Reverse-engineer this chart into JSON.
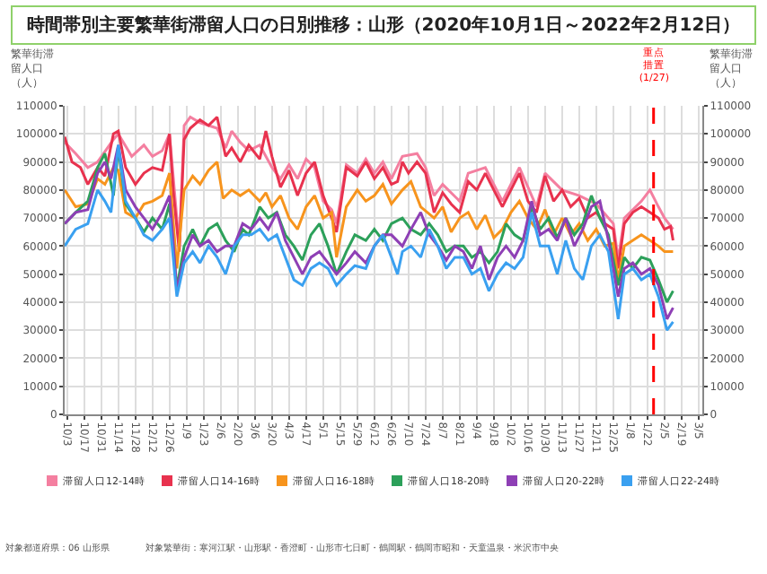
{
  "chart_data": {
    "type": "line",
    "title": "時間帯別主要繁華街滞留人口の日別推移：山形（2020年10月1日～2022年2月12日）",
    "ylabel": "繁華街滞留人口（人）",
    "y2label": "繁華街滞留人口（人）",
    "annotations": [
      "対象都道府県：06 山形県",
      "対象繁華街：寒河江駅・山形駅・香澄町・山形市七日町・鶴岡駅・鶴岡市昭和・天童温泉・米沢市中央"
    ],
    "xlim": [
      "2020-10-01",
      "2022-03-08"
    ],
    "xticks": [
      {
        "value": "2020-10-03",
        "label": "10/3"
      },
      {
        "value": "2020-10-17",
        "label": "10/17"
      },
      {
        "value": "2020-10-31",
        "label": "10/31"
      },
      {
        "value": "2020-11-14",
        "label": "11/14"
      },
      {
        "value": "2020-11-28",
        "label": "11/28"
      },
      {
        "value": "2020-12-12",
        "label": "12/12"
      },
      {
        "value": "2020-12-26",
        "label": "12/26"
      },
      {
        "value": "2021-01-09",
        "label": "1/9"
      },
      {
        "value": "2021-01-23",
        "label": "1/23"
      },
      {
        "value": "2021-02-06",
        "label": "2/6"
      },
      {
        "value": "2021-02-20",
        "label": "2/20"
      },
      {
        "value": "2021-03-06",
        "label": "3/6"
      },
      {
        "value": "2021-03-20",
        "label": "3/20"
      },
      {
        "value": "2021-04-03",
        "label": "4/3"
      },
      {
        "value": "2021-04-17",
        "label": "4/17"
      },
      {
        "value": "2021-05-01",
        "label": "5/1"
      },
      {
        "value": "2021-05-15",
        "label": "5/15"
      },
      {
        "value": "2021-05-29",
        "label": "5/29"
      },
      {
        "value": "2021-06-12",
        "label": "6/12"
      },
      {
        "value": "2021-06-26",
        "label": "6/26"
      },
      {
        "value": "2021-07-10",
        "label": "7/10"
      },
      {
        "value": "2021-07-24",
        "label": "7/24"
      },
      {
        "value": "2021-08-07",
        "label": "8/7"
      },
      {
        "value": "2021-08-21",
        "label": "8/21"
      },
      {
        "value": "2021-09-04",
        "label": "9/4"
      },
      {
        "value": "2021-09-18",
        "label": "9/18"
      },
      {
        "value": "2021-10-02",
        "label": "10/2"
      },
      {
        "value": "2021-10-16",
        "label": "10/16"
      },
      {
        "value": "2021-10-30",
        "label": "10/30"
      },
      {
        "value": "2021-11-13",
        "label": "11/13"
      },
      {
        "value": "2021-11-27",
        "label": "11/27"
      },
      {
        "value": "2021-12-11",
        "label": "12/11"
      },
      {
        "value": "2021-12-25",
        "label": "12/25"
      },
      {
        "value": "2022-01-08",
        "label": "1/8"
      },
      {
        "value": "2022-01-22",
        "label": "1/22"
      },
      {
        "value": "2022-02-05",
        "label": "2/5"
      },
      {
        "value": "2022-02-19",
        "label": "2/19"
      },
      {
        "value": "2022-03-05",
        "label": "3/5"
      }
    ],
    "ylim": [
      0,
      110000
    ],
    "yticks": [
      0,
      10000,
      20000,
      30000,
      40000,
      50000,
      60000,
      70000,
      80000,
      90000,
      100000,
      110000
    ],
    "y2lim": [
      0,
      110000
    ],
    "y2ticks": [
      0,
      10000,
      20000,
      30000,
      40000,
      50000,
      60000,
      70000,
      80000,
      90000,
      100000,
      110000
    ],
    "grid": true,
    "legend": "bottom",
    "marker": "none",
    "line_style": "solid",
    "ref_lines": [
      {
        "axis": "x",
        "value": "2022-01-27",
        "label": "重点措置(1/27)",
        "color": "#ff0000",
        "line_style": "dashed"
      }
    ],
    "series": [
      {
        "name": "滞留人口12-14時",
        "color": "#f47fa0",
        "x": [
          "2020-10-01",
          "2020-10-10",
          "2020-10-20",
          "2020-10-28",
          "2020-11-10",
          "2020-11-14",
          "2020-11-25",
          "2020-12-05",
          "2020-12-12",
          "2020-12-20",
          "2020-12-26",
          "2021-01-03",
          "2021-01-07",
          "2021-01-12",
          "2021-01-20",
          "2021-02-03",
          "2021-02-10",
          "2021-02-15",
          "2021-02-22",
          "2021-03-01",
          "2021-03-10",
          "2021-03-20",
          "2021-03-27",
          "2021-04-03",
          "2021-04-10",
          "2021-04-17",
          "2021-04-24",
          "2021-05-01",
          "2021-05-08",
          "2021-05-12",
          "2021-05-20",
          "2021-05-29",
          "2021-06-05",
          "2021-06-12",
          "2021-06-19",
          "2021-06-26",
          "2021-07-05",
          "2021-07-17",
          "2021-07-24",
          "2021-07-31",
          "2021-08-07",
          "2021-08-21",
          "2021-08-28",
          "2021-09-11",
          "2021-09-18",
          "2021-09-25",
          "2021-10-09",
          "2021-10-23",
          "2021-10-30",
          "2021-11-13",
          "2021-11-27",
          "2021-12-11",
          "2021-12-25",
          "2021-12-29",
          "2022-01-03",
          "2022-01-17",
          "2022-01-24",
          "2022-01-31",
          "2022-02-05",
          "2022-02-12"
        ],
        "values": [
          97000,
          93000,
          88000,
          90000,
          98000,
          100000,
          92000,
          96000,
          92000,
          94000,
          100000,
          60000,
          103000,
          106000,
          104000,
          102000,
          95000,
          101000,
          97000,
          94000,
          96000,
          88000,
          84000,
          89000,
          84000,
          91000,
          88000,
          76000,
          73000,
          68000,
          89000,
          86000,
          91000,
          86000,
          90000,
          84000,
          92000,
          93000,
          88000,
          78000,
          82000,
          76000,
          86000,
          88000,
          82000,
          76000,
          88000,
          74000,
          86000,
          80000,
          78000,
          75000,
          68000,
          55000,
          70000,
          76000,
          80000,
          74000,
          70000,
          66000
        ]
      },
      {
        "name": "滞留人口14-16時",
        "color": "#e8324e",
        "x": [
          "2020-10-01",
          "2020-10-07",
          "2020-10-14",
          "2020-10-20",
          "2020-10-28",
          "2020-11-03",
          "2020-11-10",
          "2020-11-14",
          "2020-11-20",
          "2020-11-28",
          "2020-12-05",
          "2020-12-12",
          "2020-12-20",
          "2020-12-26",
          "2020-12-29",
          "2021-01-03",
          "2021-01-07",
          "2021-01-12",
          "2021-01-20",
          "2021-01-27",
          "2021-02-03",
          "2021-02-10",
          "2021-02-15",
          "2021-02-22",
          "2021-03-01",
          "2021-03-10",
          "2021-03-15",
          "2021-03-20",
          "2021-03-27",
          "2021-04-03",
          "2021-04-10",
          "2021-04-17",
          "2021-04-24",
          "2021-05-01",
          "2021-05-08",
          "2021-05-12",
          "2021-05-20",
          "2021-05-29",
          "2021-06-05",
          "2021-06-12",
          "2021-06-19",
          "2021-06-26",
          "2021-07-01",
          "2021-07-05",
          "2021-07-10",
          "2021-07-17",
          "2021-07-24",
          "2021-07-31",
          "2021-08-07",
          "2021-08-14",
          "2021-08-21",
          "2021-08-28",
          "2021-09-04",
          "2021-09-11",
          "2021-09-18",
          "2021-09-25",
          "2021-10-02",
          "2021-10-09",
          "2021-10-16",
          "2021-10-23",
          "2021-10-30",
          "2021-11-06",
          "2021-11-13",
          "2021-11-20",
          "2021-11-27",
          "2021-12-04",
          "2021-12-11",
          "2021-12-18",
          "2021-12-25",
          "2021-12-29",
          "2022-01-03",
          "2022-01-10",
          "2022-01-17",
          "2022-01-24",
          "2022-01-31",
          "2022-02-05",
          "2022-02-10",
          "2022-02-12"
        ],
        "values": [
          99000,
          90000,
          88000,
          82000,
          88000,
          85000,
          100000,
          101000,
          88000,
          82000,
          86000,
          88000,
          87000,
          100000,
          80000,
          58000,
          98000,
          102000,
          105000,
          103000,
          106000,
          92000,
          95000,
          90000,
          96000,
          91000,
          101000,
          92000,
          81000,
          87000,
          78000,
          86000,
          90000,
          78000,
          70000,
          65000,
          88000,
          85000,
          90000,
          84000,
          88000,
          82000,
          83000,
          90000,
          86000,
          90000,
          86000,
          72000,
          79000,
          75000,
          72000,
          83000,
          80000,
          86000,
          80000,
          74000,
          80000,
          86000,
          76000,
          72000,
          85000,
          76000,
          80000,
          74000,
          77000,
          70000,
          72000,
          68000,
          66000,
          52000,
          68000,
          72000,
          74000,
          72000,
          70000,
          66000,
          67000,
          62000
        ]
      },
      {
        "name": "滞留人口16-18時",
        "color": "#f7941d",
        "x": [
          "2020-10-01",
          "2020-10-10",
          "2020-10-20",
          "2020-10-28",
          "2020-11-03",
          "2020-11-10",
          "2020-11-14",
          "2020-11-20",
          "2020-11-28",
          "2020-12-05",
          "2020-12-12",
          "2020-12-20",
          "2020-12-26",
          "2021-01-01",
          "2021-01-07",
          "2021-01-14",
          "2021-01-20",
          "2021-01-27",
          "2021-02-03",
          "2021-02-08",
          "2021-02-15",
          "2021-02-22",
          "2021-03-01",
          "2021-03-10",
          "2021-03-15",
          "2021-03-20",
          "2021-03-27",
          "2021-04-03",
          "2021-04-10",
          "2021-04-17",
          "2021-04-24",
          "2021-05-01",
          "2021-05-08",
          "2021-05-12",
          "2021-05-20",
          "2021-05-29",
          "2021-06-05",
          "2021-06-12",
          "2021-06-19",
          "2021-06-26",
          "2021-07-05",
          "2021-07-12",
          "2021-07-20",
          "2021-07-31",
          "2021-08-07",
          "2021-08-14",
          "2021-08-21",
          "2021-08-28",
          "2021-09-04",
          "2021-09-11",
          "2021-09-18",
          "2021-09-25",
          "2021-10-02",
          "2021-10-09",
          "2021-10-16",
          "2021-10-23",
          "2021-10-30",
          "2021-11-06",
          "2021-11-13",
          "2021-11-20",
          "2021-11-27",
          "2021-12-04",
          "2021-12-11",
          "2021-12-18",
          "2021-12-25",
          "2021-12-29",
          "2022-01-03",
          "2022-01-10",
          "2022-01-17",
          "2022-01-24",
          "2022-01-31",
          "2022-02-05",
          "2022-02-12"
        ],
        "values": [
          80000,
          74000,
          75000,
          84000,
          82000,
          88000,
          87000,
          72000,
          70000,
          75000,
          76000,
          78000,
          86000,
          52000,
          80000,
          85000,
          82000,
          87000,
          90000,
          77000,
          80000,
          78000,
          80000,
          76000,
          79000,
          74000,
          78000,
          70000,
          66000,
          74000,
          78000,
          70000,
          72000,
          56000,
          74000,
          80000,
          76000,
          78000,
          82000,
          75000,
          80000,
          83000,
          74000,
          70000,
          74000,
          65000,
          70000,
          72000,
          66000,
          71000,
          63000,
          66000,
          72000,
          76000,
          70000,
          66000,
          73000,
          64000,
          70000,
          64000,
          68000,
          62000,
          66000,
          60000,
          61000,
          48000,
          60000,
          62000,
          64000,
          62000,
          60000,
          58000,
          58000
        ]
      },
      {
        "name": "滞留人口18-20時",
        "color": "#2ca05a",
        "x": [
          "2020-10-01",
          "2020-10-10",
          "2020-10-20",
          "2020-10-28",
          "2020-11-03",
          "2020-11-10",
          "2020-11-14",
          "2020-11-20",
          "2020-11-28",
          "2020-12-05",
          "2020-12-12",
          "2020-12-20",
          "2020-12-26",
          "2021-01-01",
          "2021-01-07",
          "2021-01-14",
          "2021-01-20",
          "2021-01-27",
          "2021-02-03",
          "2021-02-10",
          "2021-02-17",
          "2021-02-24",
          "2021-03-01",
          "2021-03-10",
          "2021-03-17",
          "2021-03-24",
          "2021-03-31",
          "2021-04-07",
          "2021-04-14",
          "2021-04-21",
          "2021-04-28",
          "2021-05-05",
          "2021-05-12",
          "2021-05-20",
          "2021-05-27",
          "2021-06-05",
          "2021-06-12",
          "2021-06-19",
          "2021-06-26",
          "2021-07-05",
          "2021-07-12",
          "2021-07-20",
          "2021-07-27",
          "2021-08-03",
          "2021-08-10",
          "2021-08-17",
          "2021-08-24",
          "2021-08-31",
          "2021-09-07",
          "2021-09-14",
          "2021-09-21",
          "2021-09-28",
          "2021-10-05",
          "2021-10-12",
          "2021-10-19",
          "2021-10-26",
          "2021-11-02",
          "2021-11-09",
          "2021-11-16",
          "2021-11-23",
          "2021-11-30",
          "2021-12-07",
          "2021-12-14",
          "2021-12-21",
          "2021-12-29",
          "2022-01-03",
          "2022-01-10",
          "2022-01-17",
          "2022-01-24",
          "2022-01-31",
          "2022-02-07",
          "2022-02-12"
        ],
        "values": [
          68000,
          72000,
          76000,
          88000,
          93000,
          78000,
          95000,
          75000,
          70000,
          65000,
          70000,
          66000,
          75000,
          45000,
          60000,
          66000,
          60000,
          66000,
          68000,
          62000,
          58000,
          66000,
          64000,
          74000,
          70000,
          72000,
          64000,
          60000,
          55000,
          64000,
          68000,
          60000,
          50000,
          58000,
          64000,
          62000,
          66000,
          62000,
          68000,
          70000,
          66000,
          64000,
          68000,
          64000,
          58000,
          60000,
          60000,
          56000,
          58000,
          54000,
          58000,
          68000,
          64000,
          62000,
          74000,
          66000,
          70000,
          63000,
          70000,
          64000,
          68000,
          78000,
          70000,
          64000,
          46000,
          56000,
          52000,
          56000,
          55000,
          48000,
          40000,
          44000
        ]
      },
      {
        "name": "滞留人口20-22時",
        "color": "#8e3fb5",
        "x": [
          "2020-10-01",
          "2020-10-10",
          "2020-10-20",
          "2020-10-28",
          "2020-11-03",
          "2020-11-08",
          "2020-11-14",
          "2020-11-20",
          "2020-11-28",
          "2020-12-05",
          "2020-12-12",
          "2020-12-20",
          "2020-12-26",
          "2021-01-01",
          "2021-01-07",
          "2021-01-14",
          "2021-01-20",
          "2021-01-27",
          "2021-02-03",
          "2021-02-10",
          "2021-02-17",
          "2021-02-24",
          "2021-03-03",
          "2021-03-10",
          "2021-03-17",
          "2021-03-24",
          "2021-03-31",
          "2021-04-07",
          "2021-04-14",
          "2021-04-21",
          "2021-04-28",
          "2021-05-05",
          "2021-05-12",
          "2021-05-20",
          "2021-05-27",
          "2021-06-05",
          "2021-06-12",
          "2021-06-19",
          "2021-06-26",
          "2021-07-05",
          "2021-07-12",
          "2021-07-20",
          "2021-07-27",
          "2021-08-03",
          "2021-08-10",
          "2021-08-17",
          "2021-08-24",
          "2021-08-31",
          "2021-09-07",
          "2021-09-14",
          "2021-09-21",
          "2021-09-28",
          "2021-10-05",
          "2021-10-12",
          "2021-10-19",
          "2021-10-26",
          "2021-11-02",
          "2021-11-09",
          "2021-11-16",
          "2021-11-23",
          "2021-11-30",
          "2021-12-07",
          "2021-12-14",
          "2021-12-21",
          "2021-12-29",
          "2022-01-03",
          "2022-01-10",
          "2022-01-17",
          "2022-01-24",
          "2022-01-31",
          "2022-02-07",
          "2022-02-12"
        ],
        "values": [
          68000,
          72000,
          73000,
          86000,
          90000,
          84000,
          96000,
          80000,
          74000,
          70000,
          66000,
          72000,
          78000,
          44000,
          56000,
          64000,
          60000,
          62000,
          58000,
          60000,
          60000,
          68000,
          66000,
          70000,
          66000,
          72000,
          62000,
          56000,
          50000,
          56000,
          58000,
          54000,
          50000,
          54000,
          58000,
          54000,
          60000,
          64000,
          64000,
          60000,
          66000,
          72000,
          64000,
          60000,
          55000,
          60000,
          58000,
          52000,
          60000,
          48000,
          56000,
          60000,
          56000,
          62000,
          76000,
          64000,
          66000,
          62000,
          70000,
          60000,
          66000,
          74000,
          76000,
          62000,
          42000,
          52000,
          54000,
          50000,
          52000,
          46000,
          34000,
          38000
        ]
      },
      {
        "name": "滞留人口22-24時",
        "color": "#3aa0f0",
        "x": [
          "2020-10-01",
          "2020-10-10",
          "2020-10-20",
          "2020-10-28",
          "2020-11-03",
          "2020-11-08",
          "2020-11-14",
          "2020-11-20",
          "2020-11-28",
          "2020-12-05",
          "2020-12-12",
          "2020-12-20",
          "2020-12-26",
          "2021-01-01",
          "2021-01-07",
          "2021-01-14",
          "2021-01-20",
          "2021-01-27",
          "2021-02-03",
          "2021-02-10",
          "2021-02-17",
          "2021-02-24",
          "2021-03-03",
          "2021-03-10",
          "2021-03-17",
          "2021-03-24",
          "2021-03-31",
          "2021-04-07",
          "2021-04-14",
          "2021-04-21",
          "2021-04-28",
          "2021-05-05",
          "2021-05-12",
          "2021-05-20",
          "2021-05-27",
          "2021-06-05",
          "2021-06-12",
          "2021-06-19",
          "2021-06-26",
          "2021-07-01",
          "2021-07-05",
          "2021-07-12",
          "2021-07-20",
          "2021-07-27",
          "2021-08-03",
          "2021-08-10",
          "2021-08-17",
          "2021-08-24",
          "2021-08-31",
          "2021-09-07",
          "2021-09-14",
          "2021-09-21",
          "2021-09-28",
          "2021-10-05",
          "2021-10-12",
          "2021-10-19",
          "2021-10-26",
          "2021-11-02",
          "2021-11-09",
          "2021-11-16",
          "2021-11-23",
          "2021-11-30",
          "2021-12-07",
          "2021-12-14",
          "2021-12-21",
          "2021-12-29",
          "2022-01-03",
          "2022-01-10",
          "2022-01-17",
          "2022-01-24",
          "2022-01-31",
          "2022-02-07",
          "2022-02-12"
        ],
        "values": [
          60000,
          66000,
          68000,
          80000,
          76000,
          72000,
          96000,
          76000,
          70000,
          64000,
          62000,
          66000,
          70000,
          42000,
          54000,
          58000,
          54000,
          60000,
          56000,
          50000,
          60000,
          64000,
          64000,
          66000,
          62000,
          64000,
          56000,
          48000,
          46000,
          52000,
          54000,
          52000,
          46000,
          50000,
          53000,
          52000,
          60000,
          64000,
          56000,
          50000,
          58000,
          60000,
          56000,
          66000,
          60000,
          52000,
          56000,
          56000,
          50000,
          52000,
          44000,
          50000,
          54000,
          52000,
          56000,
          72000,
          60000,
          60000,
          50000,
          62000,
          52000,
          48000,
          60000,
          64000,
          58000,
          34000,
          50000,
          52000,
          48000,
          50000,
          42000,
          30000,
          33000
        ]
      }
    ]
  }
}
